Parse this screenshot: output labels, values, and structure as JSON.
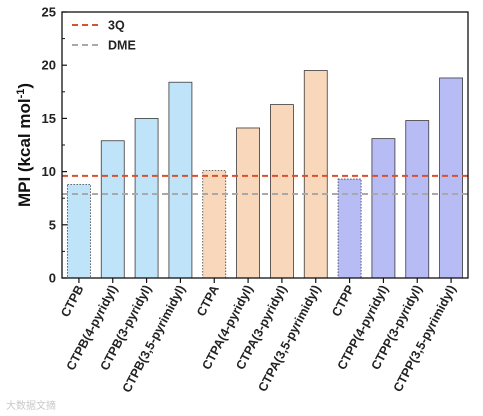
{
  "chart_data": {
    "type": "bar",
    "title": "",
    "xlabel": "",
    "ylabel": "MPI (kcal mol",
    "ylabel_sup": "-1",
    "ylabel_close": ")",
    "ylim": [
      0,
      25
    ],
    "yticks": [
      0,
      5,
      10,
      15,
      20,
      25
    ],
    "categories": [
      "CTPB",
      "CTPB(4-pyridyl)",
      "CTPB(3-pyridyl)",
      "CTPB(3,5-pyrimidyl)",
      "CTPA",
      "CTPA(4-pyridyl)",
      "CTPA(3-pyridyl)",
      "CTPA(3,5-pyrimidyl)",
      "CTPP",
      "CTPP(4-pyridyl)",
      "CTPP(3-pyridyl)",
      "CTPP(3,5-pyrimidyl)"
    ],
    "values": [
      8.8,
      12.9,
      15.0,
      18.4,
      10.1,
      14.1,
      16.3,
      19.5,
      9.3,
      13.1,
      14.8,
      18.8
    ],
    "dotted_bars": [
      0,
      4,
      8
    ],
    "bar_colors": [
      "#bfe3f8",
      "#bfe3f8",
      "#bfe3f8",
      "#bfe3f8",
      "#f9d7bb",
      "#f9d7bb",
      "#f9d7bb",
      "#f9d7bb",
      "#b8bcf5",
      "#b8bcf5",
      "#b8bcf5",
      "#b8bcf5"
    ],
    "reference_lines": [
      {
        "name": "3Q",
        "value": 9.6,
        "color": "#d9512c"
      },
      {
        "name": "DME",
        "value": 7.9,
        "color": "#a9a9a9"
      }
    ],
    "legend_position": "top-left",
    "grid": false
  },
  "watermark": "大数据文摘"
}
